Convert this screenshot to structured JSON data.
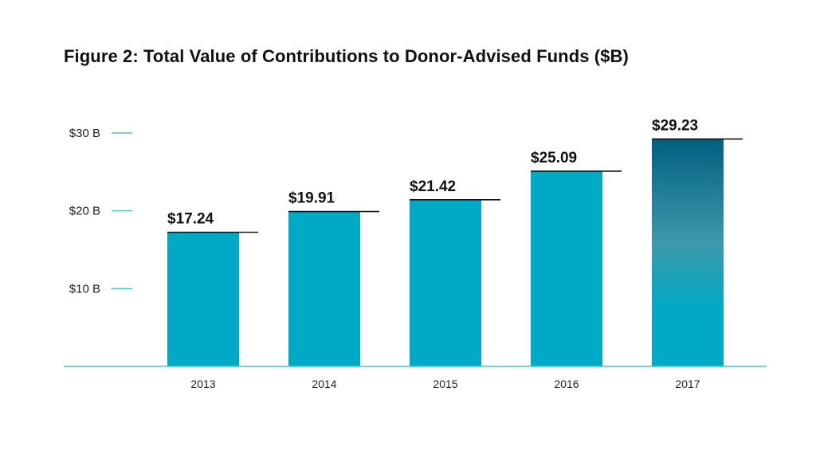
{
  "chart_data": {
    "type": "bar",
    "title": "Figure 2: Total Value of Contributions to Donor-Advised Funds ($B)",
    "xlabel": "",
    "ylabel": "",
    "categories": [
      "2013",
      "2014",
      "2015",
      "2016",
      "2017"
    ],
    "values": [
      17.24,
      19.91,
      21.42,
      25.09,
      29.23
    ],
    "value_labels": [
      "$17.24",
      "$19.91",
      "$21.42",
      "$25.09",
      "$29.23"
    ],
    "yticks": [
      10,
      20,
      30
    ],
    "ytick_labels": [
      "$10 B",
      "$20 B",
      "$30 B"
    ],
    "ylim": [
      0,
      30
    ],
    "grid": false,
    "legend": "none",
    "colors": {
      "bar": "#00a9c6",
      "highlight_top": "#00607f",
      "highlight_mid": "#3e98ab",
      "axis": "#4cc7c9",
      "cap_line": "#111111"
    },
    "highlight_index": 4
  }
}
